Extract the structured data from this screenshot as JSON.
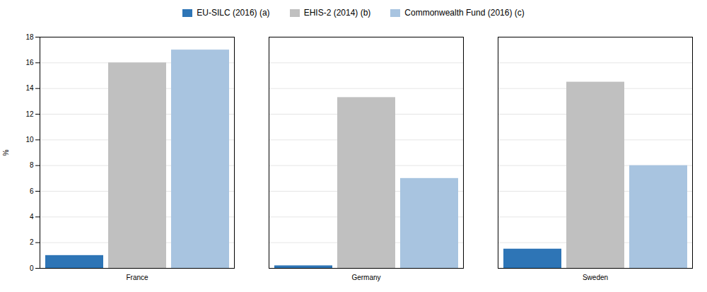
{
  "chart_data": {
    "type": "bar",
    "categories": [
      "France",
      "Germany",
      "Sweden"
    ],
    "series": [
      {
        "name": "EU-SILC (2016) (a)",
        "color": "#2E75B6",
        "values": [
          1.0,
          0.2,
          1.5
        ]
      },
      {
        "name": "EHIS-2 (2014) (b)",
        "color": "#C0C0C0",
        "values": [
          16.0,
          13.3,
          14.5
        ]
      },
      {
        "name": "Commonwealth Fund (2016) (c)",
        "color": "#A8C4E0",
        "values": [
          17.0,
          7.0,
          8.0
        ]
      }
    ],
    "ylabel": "%",
    "ylim": [
      0,
      18
    ],
    "yticks": [
      0,
      2,
      4,
      6,
      8,
      10,
      12,
      14,
      16,
      18
    ],
    "grid": true,
    "legend": "top"
  }
}
